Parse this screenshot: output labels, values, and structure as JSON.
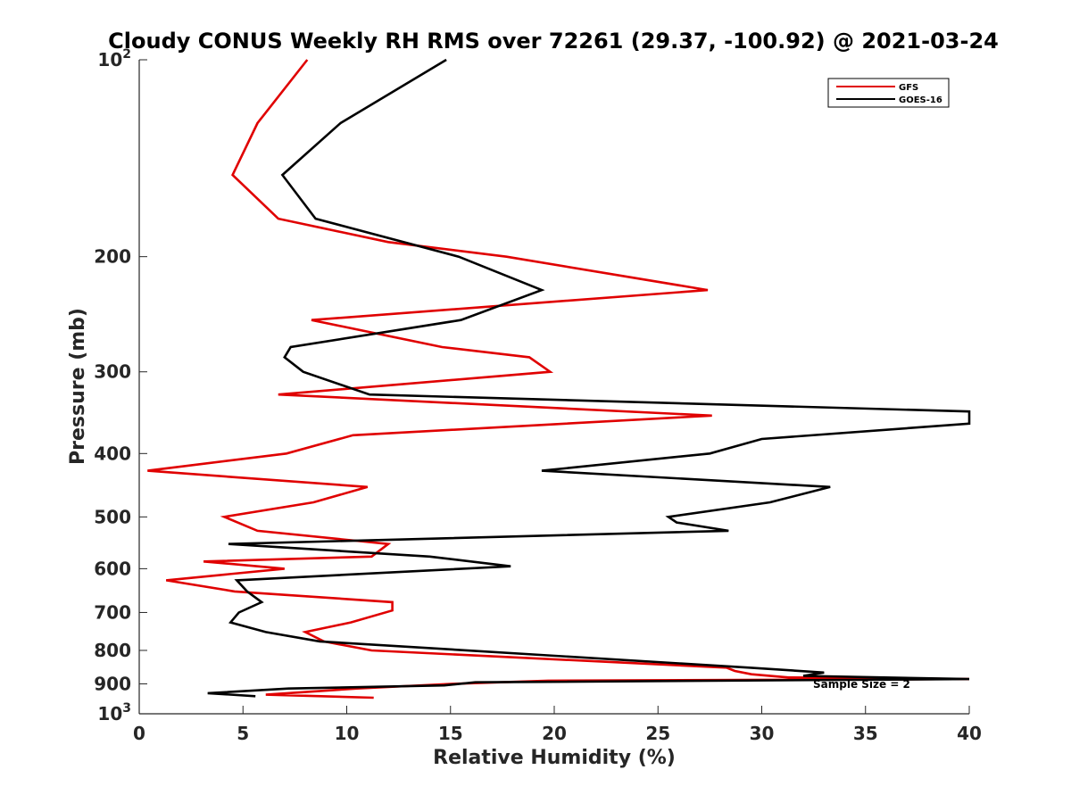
{
  "chart_data": {
    "type": "line",
    "title": "Cloudy CONUS Weekly RH RMS over 72261 (29.37, -100.92) @ 2021-03-24",
    "xlabel": "Relative Humidity (%)",
    "ylabel": "Pressure (mb)",
    "xlim": [
      0,
      40
    ],
    "ylim": [
      100,
      1000
    ],
    "yscale": "log",
    "yreversed": true,
    "x_ticks": [
      0,
      5,
      10,
      15,
      20,
      25,
      30,
      35,
      40
    ],
    "x_tick_labels": [
      "0",
      "5",
      "10",
      "15",
      "20",
      "25",
      "30",
      "35",
      "40"
    ],
    "y_ticks": [
      100,
      200,
      300,
      400,
      500,
      600,
      700,
      800,
      900,
      1000
    ],
    "y_tick_labels": [
      {
        "base": "10",
        "exp": "2"
      },
      {
        "base": "200",
        "exp": ""
      },
      {
        "base": "300",
        "exp": ""
      },
      {
        "base": "400",
        "exp": ""
      },
      {
        "base": "500",
        "exp": ""
      },
      {
        "base": "600",
        "exp": ""
      },
      {
        "base": "700",
        "exp": ""
      },
      {
        "base": "800",
        "exp": ""
      },
      {
        "base": "900",
        "exp": ""
      },
      {
        "base": "10",
        "exp": "3"
      }
    ],
    "legend_position": "top-right",
    "annotation": "Sample Size = 2",
    "series": [
      {
        "name": "GFS",
        "color": "#e00000",
        "points": [
          [
            8.1,
            100
          ],
          [
            5.7,
            125
          ],
          [
            4.5,
            150
          ],
          [
            6.7,
            175
          ],
          [
            12.0,
            190
          ],
          [
            17.7,
            200
          ],
          [
            27.4,
            225
          ],
          [
            8.3,
            250
          ],
          [
            14.6,
            275
          ],
          [
            18.8,
            285
          ],
          [
            19.8,
            300
          ],
          [
            6.7,
            325
          ],
          [
            27.6,
            350
          ],
          [
            10.3,
            375
          ],
          [
            7.1,
            400
          ],
          [
            0.4,
            425
          ],
          [
            11.0,
            450
          ],
          [
            8.4,
            475
          ],
          [
            4.1,
            500
          ],
          [
            5.7,
            525
          ],
          [
            12.0,
            550
          ],
          [
            11.2,
            575
          ],
          [
            3.1,
            585
          ],
          [
            7.0,
            600
          ],
          [
            1.3,
            625
          ],
          [
            4.6,
            650
          ],
          [
            12.2,
            675
          ],
          [
            12.2,
            695
          ],
          [
            10.2,
            725
          ],
          [
            8.0,
            750
          ],
          [
            8.9,
            775
          ],
          [
            11.2,
            800
          ],
          [
            28.3,
            850
          ],
          [
            28.7,
            860
          ],
          [
            29.5,
            870
          ],
          [
            31.3,
            880
          ],
          [
            40.0,
            885
          ],
          [
            19.7,
            890
          ],
          [
            15.0,
            900
          ],
          [
            10.5,
            915
          ],
          [
            6.1,
            935
          ],
          [
            11.3,
            945
          ]
        ]
      },
      {
        "name": "GOES-16",
        "color": "#000000",
        "points": [
          [
            14.8,
            100
          ],
          [
            9.7,
            125
          ],
          [
            6.9,
            150
          ],
          [
            8.5,
            175
          ],
          [
            15.4,
            200
          ],
          [
            19.4,
            225
          ],
          [
            15.5,
            250
          ],
          [
            7.3,
            275
          ],
          [
            7.0,
            285
          ],
          [
            7.9,
            300
          ],
          [
            11.1,
            325
          ],
          [
            40.0,
            345
          ],
          [
            40.0,
            360
          ],
          [
            30.0,
            380
          ],
          [
            27.5,
            400
          ],
          [
            19.4,
            425
          ],
          [
            33.3,
            450
          ],
          [
            30.4,
            475
          ],
          [
            25.5,
            500
          ],
          [
            25.9,
            510
          ],
          [
            28.4,
            525
          ],
          [
            4.3,
            550
          ],
          [
            14.0,
            575
          ],
          [
            17.9,
            595
          ],
          [
            4.7,
            625
          ],
          [
            5.2,
            650
          ],
          [
            5.9,
            675
          ],
          [
            4.8,
            700
          ],
          [
            4.4,
            725
          ],
          [
            6.1,
            750
          ],
          [
            8.7,
            775
          ],
          [
            29.4,
            850
          ],
          [
            33.0,
            865
          ],
          [
            32.0,
            875
          ],
          [
            40.0,
            885
          ],
          [
            16.2,
            895
          ],
          [
            14.7,
            905
          ],
          [
            7.2,
            915
          ],
          [
            3.3,
            930
          ],
          [
            5.6,
            940
          ]
        ]
      }
    ]
  }
}
